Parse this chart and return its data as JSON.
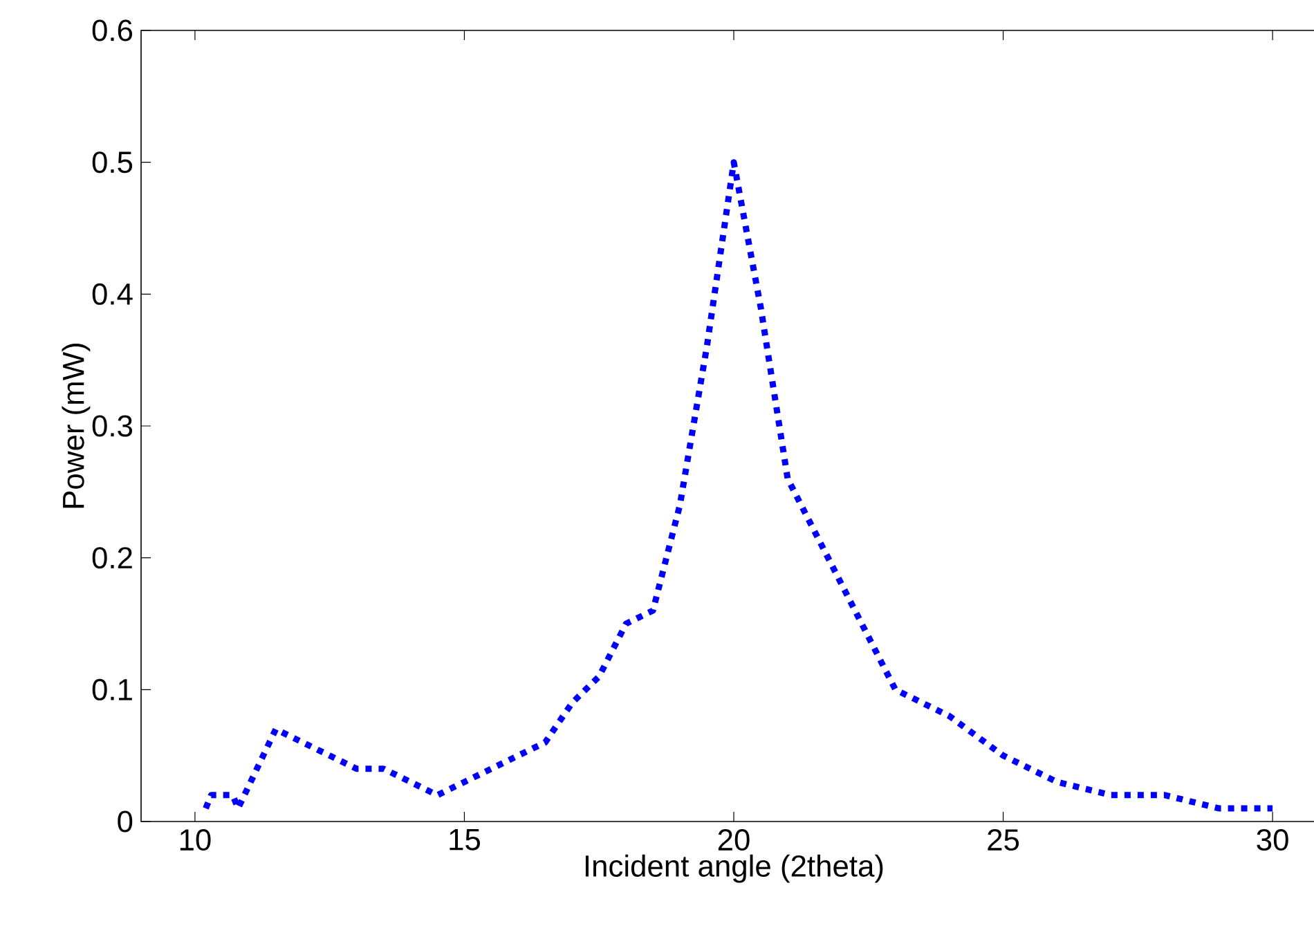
{
  "chart_data": {
    "type": "line",
    "xlabel": "Incident angle (2theta)",
    "ylabel": "Power (mW)",
    "xlim": [
      9,
      31
    ],
    "ylim": [
      0,
      0.6
    ],
    "xticks": [
      10,
      15,
      20,
      25,
      30
    ],
    "yticks": [
      0,
      0.1,
      0.2,
      0.3,
      0.4,
      0.5,
      0.6
    ],
    "grid": false,
    "marker": "none",
    "line_style": "dotted",
    "series": [
      {
        "color": "#0000ff",
        "x": [
          10.2,
          10.3,
          10.7,
          10.8,
          11.5,
          13,
          13.5,
          14.5,
          15.5,
          16.5,
          17,
          17.5,
          18,
          18.5,
          19,
          19.5,
          20,
          20.5,
          21,
          22,
          23,
          24,
          25,
          26,
          27,
          28,
          29,
          30
        ],
        "values": [
          0.01,
          0.02,
          0.02,
          0.01,
          0.07,
          0.04,
          0.04,
          0.02,
          0.04,
          0.06,
          0.09,
          0.11,
          0.15,
          0.16,
          0.24,
          0.36,
          0.5,
          0.39,
          0.26,
          0.18,
          0.1,
          0.08,
          0.05,
          0.03,
          0.02,
          0.02,
          0.01,
          0.01
        ]
      }
    ]
  }
}
